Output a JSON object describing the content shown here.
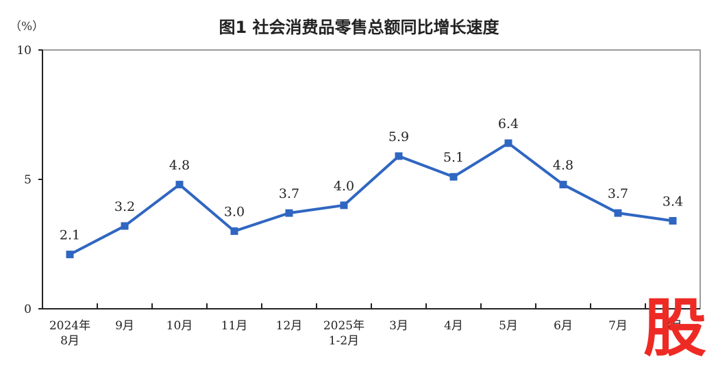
{
  "title": "图1  社会消费品零售总额同比增长速度",
  "unit": "（%）",
  "watermark": "股",
  "colors": {
    "line": "#2f66c1",
    "axis": "#222222",
    "frame": "#9a9a9a"
  },
  "chart_data": {
    "type": "line",
    "title": "图1  社会消费品零售总额同比增长速度",
    "xlabel": "",
    "ylabel": "（%）",
    "ylim": [
      0,
      10
    ],
    "yticks": [
      0,
      5,
      10
    ],
    "grid": false,
    "categories": [
      [
        "2024年",
        "8月"
      ],
      [
        "9月"
      ],
      [
        "10月"
      ],
      [
        "11月"
      ],
      [
        "12月"
      ],
      [
        "2025年",
        "1-2月"
      ],
      [
        "3月"
      ],
      [
        "4月"
      ],
      [
        "5月"
      ],
      [
        "6月"
      ],
      [
        "7月"
      ],
      [
        "8月"
      ]
    ],
    "series": [
      {
        "values": [
          2.1,
          3.2,
          4.8,
          3.0,
          3.7,
          4.0,
          5.9,
          5.1,
          6.4,
          4.8,
          3.7,
          3.4
        ],
        "labels": [
          "2.1",
          "3.2",
          "4.8",
          "3.0",
          "3.7",
          "4.0",
          "5.9",
          "5.1",
          "6.4",
          "4.8",
          "3.7",
          "3.4"
        ]
      }
    ]
  }
}
